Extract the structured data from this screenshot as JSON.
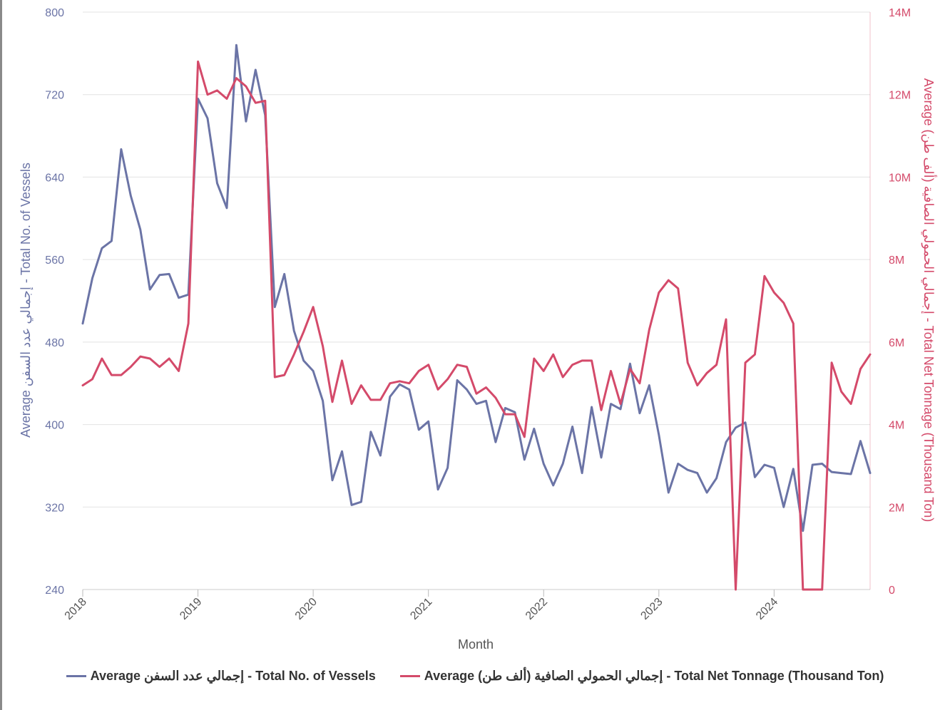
{
  "chart_data": {
    "type": "line",
    "xlabel": "Month",
    "x_ticks": [
      "2018",
      "2019",
      "2020",
      "2021",
      "2022",
      "2023",
      "2024"
    ],
    "y_left": {
      "label": "Average إجمالي عدد السفن - Total No. of Vessels",
      "ticks": [
        "240",
        "320",
        "400",
        "480",
        "560",
        "640",
        "720",
        "800"
      ],
      "range": [
        240,
        800
      ]
    },
    "y_right": {
      "label": "Average إجمالي الحمولي الصافية (ألف طن) - Total Net Tonnage (Thousand Ton)",
      "ticks": [
        "0",
        "2M",
        "4M",
        "6M",
        "8M",
        "10M",
        "12M",
        "14M"
      ],
      "range": [
        0,
        14000000
      ]
    },
    "grid": "horizontal",
    "legend_position": "bottom",
    "x_start": "2018-01",
    "series": [
      {
        "name": "Average إجمالي عدد السفن - Total No. of Vessels",
        "axis": "left",
        "color": "#6b74a6",
        "values": [
          498,
          542,
          571,
          578,
          667,
          622,
          589,
          531,
          545,
          546,
          523,
          526,
          716,
          697,
          634,
          610,
          768,
          694,
          744,
          700,
          514,
          546,
          491,
          462,
          452,
          423,
          346,
          374,
          322,
          325,
          393,
          370,
          427,
          439,
          434,
          395,
          403,
          337,
          358,
          443,
          434,
          420,
          423,
          383,
          416,
          412,
          366,
          396,
          362,
          341,
          362,
          398,
          353,
          417,
          368,
          420,
          415,
          459,
          411,
          438,
          390,
          334,
          362,
          356,
          353,
          334,
          348,
          383,
          397,
          402,
          349,
          361,
          358,
          320,
          357,
          297,
          361,
          362,
          354,
          353,
          352,
          384,
          353
        ]
      },
      {
        "name": "Average إجمالي الحمولي الصافية (ألف طن) - Total Net Tonnage (Thousand Ton)",
        "axis": "right",
        "color": "#d44a6a",
        "values": [
          4950000,
          5100000,
          5600000,
          5200000,
          5200000,
          5400000,
          5650000,
          5600000,
          5400000,
          5600000,
          5300000,
          6450000,
          12800000,
          12000000,
          12100000,
          11900000,
          12400000,
          12200000,
          11800000,
          11850000,
          5150000,
          5200000,
          5700000,
          6250000,
          6850000,
          5900000,
          4550000,
          5550000,
          4500000,
          4950000,
          4600000,
          4600000,
          5000000,
          5050000,
          5000000,
          5300000,
          5450000,
          4850000,
          5100000,
          5450000,
          5400000,
          4750000,
          4900000,
          4650000,
          4250000,
          4250000,
          3700000,
          5600000,
          5300000,
          5700000,
          5150000,
          5450000,
          5550000,
          5550000,
          4350000,
          5300000,
          4500000,
          5350000,
          5000000,
          6300000,
          7200000,
          7500000,
          7300000,
          5500000,
          4950000,
          5250000,
          5450000,
          6550000,
          0,
          5500000,
          5700000,
          7600000,
          7200000,
          6950000,
          6450000,
          0,
          0,
          0,
          5500000,
          4800000,
          4500000,
          5350000,
          5700000
        ]
      }
    ]
  }
}
